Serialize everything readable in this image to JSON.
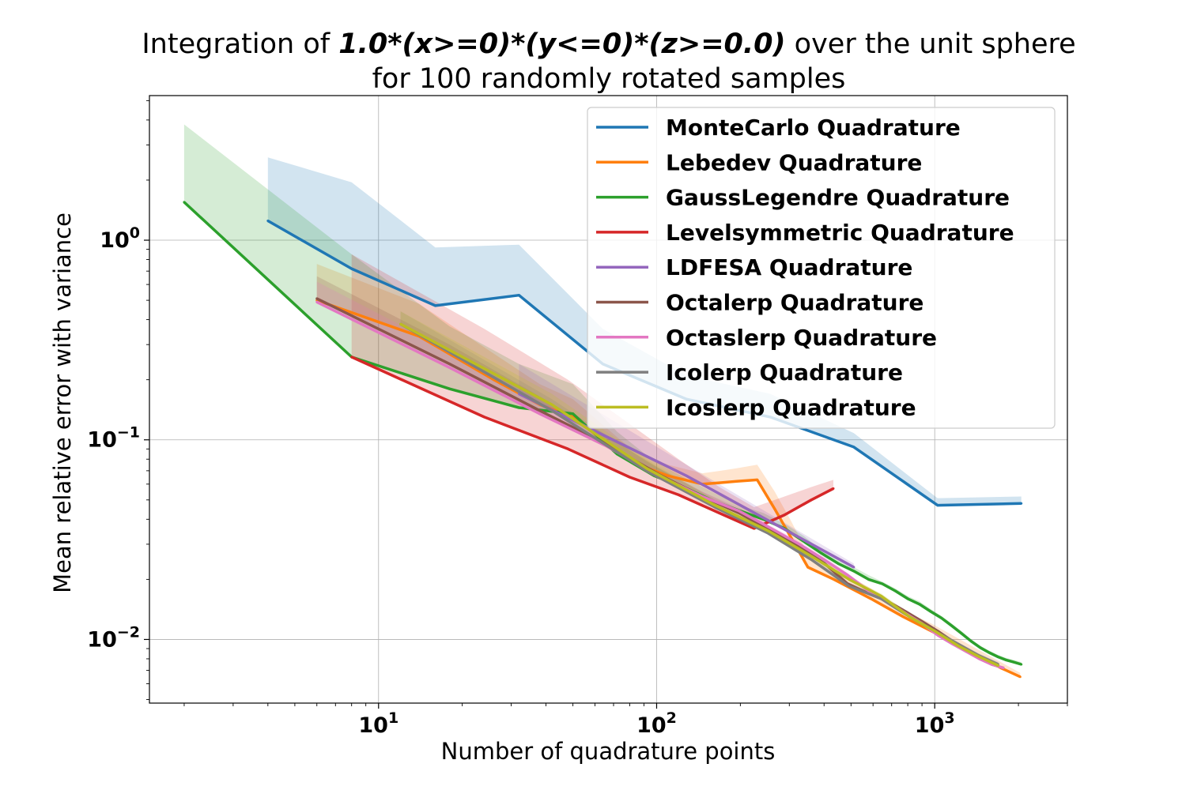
{
  "chart_data": {
    "type": "line",
    "title": {
      "prefix": "Integration of ",
      "formula": "1.0*(x>=0)*(y<=0)*(z>=0.0)",
      "suffix": " over the unit sphere",
      "line2": "for 100 randomly rotated samples"
    },
    "xlabel": "Number of quadrature points",
    "ylabel": "Mean relative error with variance",
    "xscale": "log",
    "yscale": "log",
    "xlim": [
      1.5,
      3000
    ],
    "ylim": [
      0.0048,
      5.3
    ],
    "xticks": [
      {
        "value": 10,
        "base": "10",
        "exp": "1"
      },
      {
        "value": 100,
        "base": "10",
        "exp": "2"
      },
      {
        "value": 1000,
        "base": "10",
        "exp": "3"
      }
    ],
    "yticks": [
      {
        "value": 0.01,
        "base": "10",
        "exp": "−2"
      },
      {
        "value": 0.1,
        "base": "10",
        "exp": "−1"
      },
      {
        "value": 1,
        "base": "10",
        "exp": "0"
      }
    ],
    "grid": true,
    "legend_position": "top-right",
    "series": [
      {
        "name": "MonteCarlo Quadrature",
        "color": "#1f77b4",
        "x": [
          4,
          8,
          16,
          32,
          64,
          128,
          256,
          512,
          1024,
          2048
        ],
        "y": [
          1.25,
          0.72,
          0.47,
          0.53,
          0.24,
          0.16,
          0.13,
          0.092,
          0.047,
          0.048
        ],
        "upper": [
          2.6,
          1.95,
          0.92,
          0.95,
          0.36,
          0.21,
          0.17,
          0.108,
          0.051,
          0.052
        ],
        "lower": [
          1.25,
          0.72,
          0.47,
          0.53,
          0.24,
          0.16,
          0.13,
          0.092,
          0.047,
          0.048
        ]
      },
      {
        "name": "Lebedev Quadrature",
        "color": "#ff7f0e",
        "x": [
          6,
          14,
          26,
          38,
          50,
          74,
          86,
          110,
          146,
          170,
          194,
          230,
          266,
          302,
          350,
          434,
          590,
          770,
          974,
          1202,
          1454,
          1730,
          2030
        ],
        "y": [
          0.5,
          0.33,
          0.2,
          0.15,
          0.13,
          0.085,
          0.075,
          0.066,
          0.06,
          0.061,
          0.062,
          0.063,
          0.045,
          0.033,
          0.023,
          0.02,
          0.016,
          0.013,
          0.011,
          0.0095,
          0.0082,
          0.0072,
          0.0065
        ],
        "upper": [
          0.76,
          0.48,
          0.27,
          0.19,
          0.16,
          0.1,
          0.085,
          0.075,
          0.068,
          0.07,
          0.072,
          0.075,
          0.055,
          0.04,
          0.027,
          0.023,
          0.018,
          0.014,
          0.012,
          0.0102,
          0.0088,
          0.0077,
          0.0068
        ],
        "lower": [
          0.5,
          0.33,
          0.2,
          0.15,
          0.13,
          0.085,
          0.075,
          0.066,
          0.06,
          0.061,
          0.062,
          0.063,
          0.045,
          0.033,
          0.023,
          0.02,
          0.016,
          0.013,
          0.011,
          0.0095,
          0.0082,
          0.0072,
          0.0065
        ]
      },
      {
        "name": "GaussLegendre Quadrature",
        "color": "#2ca02c",
        "x": [
          2,
          8,
          18,
          32,
          50,
          72,
          98,
          128,
          162,
          200,
          242,
          288,
          338,
          392,
          450,
          512,
          578,
          648,
          722,
          800,
          882,
          968,
          1058,
          1152,
          1250,
          1352,
          1458,
          1568,
          1682,
          1800,
          1922,
          2048
        ],
        "y": [
          1.55,
          0.26,
          0.18,
          0.145,
          0.135,
          0.085,
          0.066,
          0.057,
          0.049,
          0.044,
          0.04,
          0.036,
          0.031,
          0.027,
          0.024,
          0.022,
          0.02,
          0.019,
          0.0175,
          0.016,
          0.015,
          0.0138,
          0.0128,
          0.0117,
          0.0107,
          0.0098,
          0.0091,
          0.0086,
          0.0082,
          0.0079,
          0.0077,
          0.0075
        ],
        "upper": [
          3.8,
          0.85,
          0.37,
          0.24,
          0.19,
          0.11,
          0.078,
          0.064,
          0.054,
          0.047,
          0.043,
          0.038,
          0.033,
          0.028,
          0.025,
          0.023,
          0.021,
          0.0195,
          0.018,
          0.0165,
          0.0155,
          0.0142,
          0.0131,
          0.012,
          0.011,
          0.01,
          0.0093,
          0.0088,
          0.0084,
          0.0081,
          0.0079,
          0.0077
        ],
        "lower": [
          1.55,
          0.26,
          0.18,
          0.145,
          0.135,
          0.085,
          0.066,
          0.057,
          0.049,
          0.044,
          0.04,
          0.036,
          0.031,
          0.027,
          0.024,
          0.022,
          0.02,
          0.019,
          0.0175,
          0.016,
          0.015,
          0.0138,
          0.0128,
          0.0117,
          0.0107,
          0.0098,
          0.0091,
          0.0086,
          0.0082,
          0.0079,
          0.0077,
          0.0075
        ]
      },
      {
        "name": "Levelsymmetric Quadrature",
        "color": "#d62728",
        "x": [
          8,
          24,
          48,
          80,
          120,
          168,
          224,
          288,
          360,
          432
        ],
        "y": [
          0.26,
          0.13,
          0.09,
          0.065,
          0.053,
          0.043,
          0.036,
          0.042,
          0.05,
          0.057
        ],
        "upper": [
          0.85,
          0.36,
          0.2,
          0.12,
          0.08,
          0.058,
          0.046,
          0.052,
          0.058,
          0.063
        ],
        "lower": [
          0.26,
          0.13,
          0.09,
          0.065,
          0.053,
          0.043,
          0.036,
          0.042,
          0.05,
          0.057
        ]
      },
      {
        "name": "LDFESA Quadrature",
        "color": "#9467bd",
        "x": [
          32,
          128,
          512
        ],
        "y": [
          0.17,
          0.066,
          0.023
        ],
        "upper": [
          0.24,
          0.075,
          0.024
        ],
        "lower": [
          0.17,
          0.066,
          0.023
        ]
      },
      {
        "name": "Octalerp Quadrature",
        "color": "#8c564b",
        "x": [
          6,
          18,
          38,
          66,
          102,
          146,
          198,
          258,
          326,
          402,
          486,
          578,
          678,
          786,
          902,
          1026,
          1158,
          1298,
          1446,
          1602,
          1766
        ],
        "y": [
          0.51,
          0.24,
          0.14,
          0.095,
          0.067,
          0.052,
          0.043,
          0.035,
          0.029,
          0.024,
          0.019,
          0.017,
          0.0155,
          0.0138,
          0.0123,
          0.011,
          0.0098,
          0.0089,
          0.0081,
          0.0075,
          0.0072
        ],
        "upper": [
          0.66,
          0.3,
          0.165,
          0.105,
          0.072,
          0.055,
          0.045,
          0.036,
          0.03,
          0.025,
          0.0195,
          0.0175,
          0.0158,
          0.014,
          0.0125,
          0.0112,
          0.01,
          0.009,
          0.0082,
          0.0076,
          0.0073
        ],
        "lower": [
          0.51,
          0.24,
          0.14,
          0.095,
          0.067,
          0.052,
          0.043,
          0.035,
          0.029,
          0.024,
          0.019,
          0.017,
          0.0155,
          0.0138,
          0.0123,
          0.011,
          0.0098,
          0.0089,
          0.0081,
          0.0075,
          0.0072
        ]
      },
      {
        "name": "Octaslerp Quadrature",
        "color": "#e377c2",
        "x": [
          6,
          18,
          38,
          66,
          102,
          146,
          198,
          258,
          326,
          402,
          486,
          578,
          678,
          786,
          902,
          1026,
          1158,
          1298,
          1446,
          1602,
          1766
        ],
        "y": [
          0.49,
          0.23,
          0.135,
          0.093,
          0.066,
          0.052,
          0.044,
          0.036,
          0.03,
          0.025,
          0.021,
          0.0175,
          0.0155,
          0.0135,
          0.012,
          0.0105,
          0.0095,
          0.0087,
          0.008,
          0.0075,
          0.0072
        ],
        "upper": [
          0.62,
          0.28,
          0.155,
          0.1,
          0.07,
          0.055,
          0.046,
          0.037,
          0.031,
          0.026,
          0.0215,
          0.018,
          0.0158,
          0.0138,
          0.0122,
          0.0107,
          0.0097,
          0.0088,
          0.0081,
          0.0076,
          0.0073
        ],
        "lower": [
          0.49,
          0.23,
          0.135,
          0.093,
          0.066,
          0.052,
          0.044,
          0.036,
          0.03,
          0.025,
          0.021,
          0.0175,
          0.0155,
          0.0135,
          0.012,
          0.0105,
          0.0095,
          0.0087,
          0.008,
          0.0075,
          0.0072
        ]
      },
      {
        "name": "Icolerp Quadrature",
        "color": "#7f7f7f",
        "x": [
          12,
          42,
          92,
          162,
          252,
          362,
          492,
          642,
          812,
          1002,
          1212,
          1442,
          1692
        ],
        "y": [
          0.38,
          0.14,
          0.07,
          0.046,
          0.034,
          0.025,
          0.0185,
          0.016,
          0.013,
          0.011,
          0.0095,
          0.0083,
          0.0075
        ],
        "upper": [
          0.44,
          0.16,
          0.078,
          0.05,
          0.036,
          0.026,
          0.019,
          0.0165,
          0.0135,
          0.0113,
          0.0097,
          0.0085,
          0.0077
        ],
        "lower": [
          0.38,
          0.14,
          0.07,
          0.046,
          0.034,
          0.025,
          0.0185,
          0.016,
          0.013,
          0.011,
          0.0095,
          0.0083,
          0.0075
        ]
      },
      {
        "name": "Icoslerp Quadrature",
        "color": "#bcbd22",
        "x": [
          12,
          42,
          92,
          162,
          252,
          362,
          492,
          642,
          812,
          1002,
          1212,
          1442,
          1692
        ],
        "y": [
          0.38,
          0.15,
          0.072,
          0.047,
          0.035,
          0.026,
          0.02,
          0.0165,
          0.013,
          0.011,
          0.0093,
          0.0082,
          0.0074
        ],
        "upper": [
          0.44,
          0.17,
          0.08,
          0.05,
          0.037,
          0.027,
          0.0205,
          0.017,
          0.0135,
          0.0113,
          0.0095,
          0.0084,
          0.0076
        ],
        "lower": [
          0.38,
          0.15,
          0.072,
          0.047,
          0.035,
          0.026,
          0.02,
          0.0165,
          0.013,
          0.011,
          0.0093,
          0.0082,
          0.0074
        ]
      }
    ]
  }
}
